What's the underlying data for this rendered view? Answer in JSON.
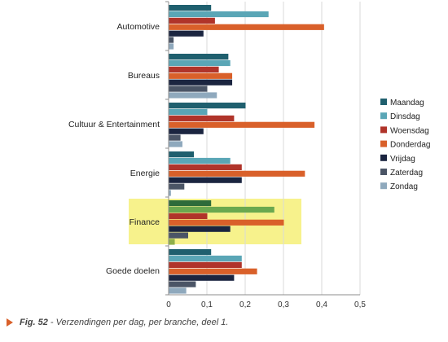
{
  "chart_data": {
    "type": "bar",
    "orientation": "horizontal",
    "categories": [
      "Automotive",
      "Bureaus",
      "Cultuur & Entertainment",
      "Energie",
      "Finance",
      "Goede doelen"
    ],
    "highlighted_category": "Finance",
    "highlight_color": "#f7f28c",
    "xlim": [
      0,
      0.5
    ],
    "x_ticks": [
      "0",
      "0,1",
      "0,2",
      "0,3",
      "0,4",
      "0,5"
    ],
    "x_tick_values": [
      0,
      0.1,
      0.2,
      0.3,
      0.4,
      0.5
    ],
    "legend_position": "right",
    "grid": "vertical",
    "series": [
      {
        "name": "Maandag",
        "color": "#1f5f6e",
        "values": [
          0.11,
          0.155,
          0.2,
          0.065,
          0.11,
          0.11
        ]
      },
      {
        "name": "Dinsdag",
        "color": "#5aa6b6",
        "values": [
          0.26,
          0.16,
          0.1,
          0.16,
          0.275,
          0.19
        ]
      },
      {
        "name": "Woensdag",
        "color": "#b0342a",
        "values": [
          0.12,
          0.13,
          0.17,
          0.19,
          0.1,
          0.19
        ]
      },
      {
        "name": "Donderdag",
        "color": "#d9602a",
        "values": [
          0.405,
          0.165,
          0.38,
          0.355,
          0.3,
          0.23
        ]
      },
      {
        "name": "Vrijdag",
        "color": "#1b2540",
        "values": [
          0.09,
          0.165,
          0.09,
          0.19,
          0.16,
          0.17
        ]
      },
      {
        "name": "Zaterdag",
        "color": "#4b5566",
        "values": [
          0.012,
          0.1,
          0.03,
          0.04,
          0.05,
          0.07
        ]
      },
      {
        "name": "Zondag",
        "color": "#8fa9bd",
        "values": [
          0.012,
          0.125,
          0.035,
          0.005,
          0.015,
          0.045
        ]
      }
    ],
    "finance_overrides": {
      "Maandag": "#2e6b3a",
      "Dinsdag": "#6ba84f",
      "Zondag": "#8fb04a"
    }
  },
  "caption": {
    "label": "Fig. 52",
    "text": " - Verzendingen per dag, per branche, deel 1."
  }
}
